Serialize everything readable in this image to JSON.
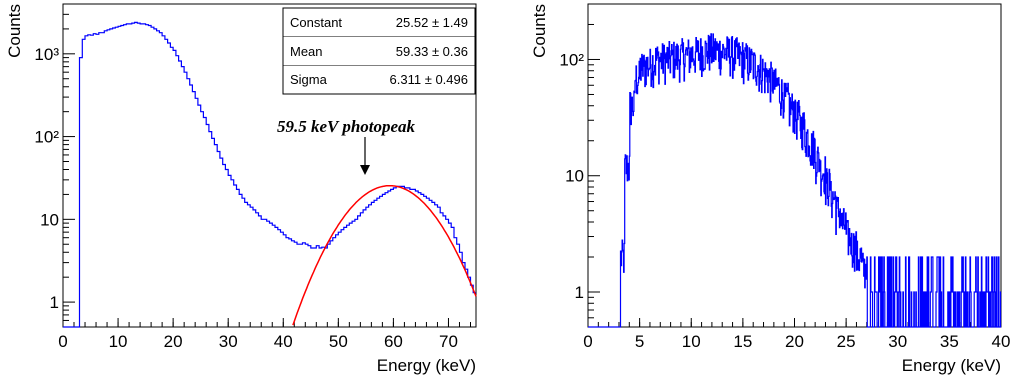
{
  "chart_data": [
    {
      "type": "histogram",
      "xlabel": "Energy (keV)",
      "ylabel": "Counts",
      "y_scale": "log",
      "xlim": [
        0,
        75
      ],
      "ylim": [
        0.5,
        4000
      ],
      "grid": false,
      "x_ticks": [
        0,
        10,
        20,
        30,
        40,
        50,
        60,
        70
      ],
      "x_tick_labels": [
        "0",
        "10",
        "20",
        "30",
        "40",
        "50",
        "60",
        "70"
      ],
      "y_ticks": [
        1,
        10,
        100,
        1000
      ],
      "y_tick_labels": [
        "1",
        "10",
        "10²",
        "10³"
      ],
      "series": [
        {
          "color": "#0000ff",
          "bin_width": 0.5,
          "x_start": 0,
          "values": [
            0.5,
            0.5,
            0.5,
            0.5,
            0.5,
            0.5,
            900,
            1500,
            1650,
            1700,
            1680,
            1750,
            1720,
            1800,
            1800,
            1900,
            1950,
            2000,
            2050,
            2100,
            2150,
            2200,
            2250,
            2300,
            2300,
            2350,
            2400,
            2350,
            2300,
            2300,
            2250,
            2200,
            2100,
            2000,
            1900,
            1800,
            1650,
            1500,
            1350,
            1200,
            1100,
            950,
            820,
            700,
            600,
            500,
            420,
            350,
            290,
            240,
            200,
            170,
            140,
            115,
            95,
            80,
            66,
            55,
            46,
            40,
            34,
            30,
            26,
            23,
            20,
            18,
            16,
            15,
            14,
            13,
            12,
            11,
            10,
            10,
            9.5,
            9,
            8.5,
            8,
            7.5,
            7,
            6.5,
            6,
            5.8,
            5.5,
            5.3,
            5,
            5,
            5.2,
            5,
            4.8,
            4.5,
            4.5,
            4.8,
            4.5,
            4.6,
            4.5,
            5,
            5.5,
            6,
            6.5,
            7,
            7.5,
            8,
            8.5,
            9,
            9.5,
            10,
            11,
            12,
            13,
            14,
            15,
            16,
            17,
            18,
            19,
            20,
            21,
            22,
            23,
            24,
            25,
            25,
            25,
            24,
            24,
            23,
            23,
            22,
            21,
            20,
            19,
            18,
            17,
            16,
            15,
            14,
            12,
            11,
            10,
            9,
            8,
            6,
            5,
            4,
            3,
            2.5,
            2,
            1.6,
            1.3,
            1.0,
            0.8,
            0.6,
            0.5
          ]
        },
        {
          "type": "fit",
          "color": "#ff0000",
          "model": "gaus",
          "constant": 25.52,
          "mean": 59.33,
          "sigma": 6.311
        }
      ],
      "stats_box": {
        "rows": [
          {
            "name": "Constant",
            "value": "25.52 ± 1.49"
          },
          {
            "name": "Mean",
            "value": "59.33 ± 0.36"
          },
          {
            "name": "Sigma",
            "value": "6.311 ± 0.496"
          }
        ]
      },
      "annotation": {
        "text": "59.5 keV photopeak",
        "x": 55.5,
        "y": 70
      }
    },
    {
      "type": "histogram",
      "xlabel": "Energy (keV)",
      "ylabel": "Counts",
      "y_scale": "log",
      "xlim": [
        0,
        40
      ],
      "ylim": [
        0.5,
        300
      ],
      "grid": false,
      "x_ticks": [
        0,
        5,
        10,
        15,
        20,
        25,
        30,
        35,
        40
      ],
      "x_tick_labels": [
        "0",
        "5",
        "10",
        "15",
        "20",
        "25",
        "30",
        "35",
        "40"
      ],
      "y_ticks": [
        1,
        10,
        100
      ],
      "y_tick_labels": [
        "1",
        "10",
        "10²"
      ],
      "series": [
        {
          "color": "#0000ff",
          "bin_width": 0.05,
          "x_start": 0,
          "profile": "noisy spectrum; zero below 3.1 keV, rising to ~100-130 counts between 5 and 14 keV, falling to ~1 by 27 keV, sparse counts of 1-2 from 27 to 40 keV",
          "values": [
            0.5,
            0.5,
            0.5,
            0.5,
            0.5,
            0.5,
            2,
            12,
            40,
            70,
            85,
            90,
            95,
            100,
            100,
            102,
            104,
            105,
            108,
            110,
            112,
            115,
            118,
            120,
            120,
            118,
            116,
            114,
            110,
            105,
            100,
            95,
            90,
            82,
            75,
            68,
            60,
            52,
            45,
            38,
            32,
            27,
            22,
            18,
            14,
            11,
            8.5,
            6.5,
            5,
            3.8,
            3,
            2.5,
            2,
            1.6,
            1.3,
            1.1,
            1.0,
            1.0,
            1.0,
            1.0,
            1.0,
            1.0,
            1.0,
            1.0,
            1.0,
            1.0,
            1.0,
            1.0,
            1.0,
            1.0,
            1.0,
            1.0,
            1.0,
            1.0,
            1.0,
            1.0,
            1.0,
            1.0,
            1.0,
            1.0,
            1.0
          ]
        }
      ]
    }
  ]
}
